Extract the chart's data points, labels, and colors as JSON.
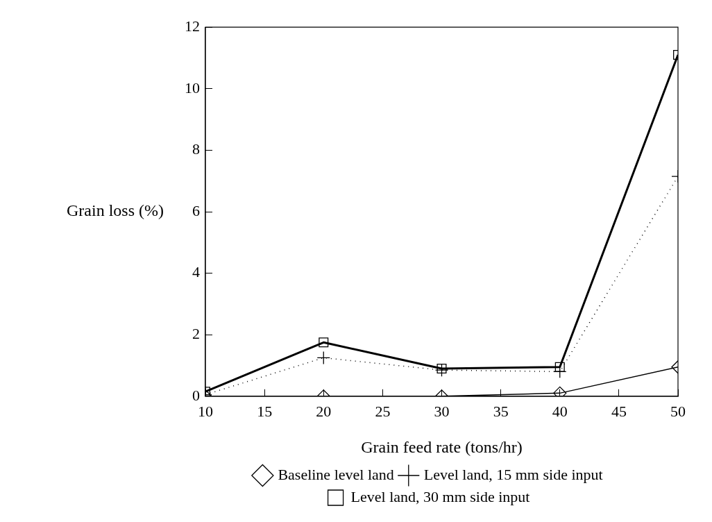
{
  "chart_data": {
    "type": "line",
    "xlabel": "Grain feed rate (tons/hr)",
    "ylabel": "Grain loss (%)",
    "x": [
      10,
      20,
      30,
      40,
      50
    ],
    "xlim": [
      10,
      50
    ],
    "xticks": [
      10,
      15,
      20,
      25,
      30,
      35,
      40,
      45,
      50
    ],
    "ylim": [
      0,
      12
    ],
    "yticks": [
      0,
      2,
      4,
      6,
      8,
      10,
      12
    ],
    "grid": false,
    "legend": "bottom",
    "series": [
      {
        "name": "Baseline level land",
        "color": "#000000",
        "values": [
          0,
          0,
          0,
          0.1,
          0.95
        ],
        "marker": "diamond",
        "line_style": "solid"
      },
      {
        "name": "Level land, 15 mm side input",
        "color": "#000000",
        "values": [
          0.05,
          1.25,
          0.85,
          0.8,
          7.15
        ],
        "marker": "cross",
        "line_style": "dotted"
      },
      {
        "name": "Level land, 30 mm side input",
        "color": "#000000",
        "values": [
          0.15,
          1.75,
          0.9,
          0.95,
          11.1
        ],
        "marker": "square",
        "line_style": "solid"
      }
    ]
  }
}
